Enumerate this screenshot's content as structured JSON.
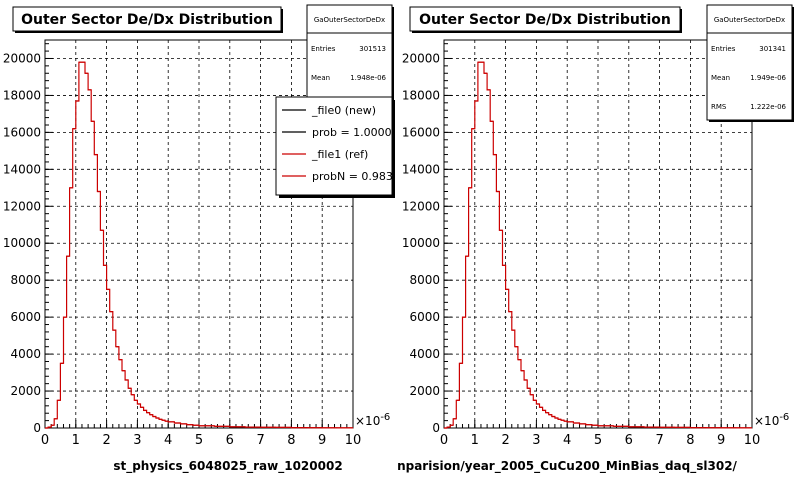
{
  "chart_data": [
    {
      "type": "line",
      "title": "Outer Sector De/Dx Distribution",
      "xlabel": "st_physics_6048025_raw_1020002",
      "ylabel": "",
      "x_exponent": "×10",
      "x_exponent_power": "-6",
      "xlim": [
        0,
        10
      ],
      "ylim": [
        0,
        21000
      ],
      "x_ticks": [
        "0",
        "1",
        "2",
        "3",
        "4",
        "5",
        "6",
        "7",
        "8",
        "9",
        "10"
      ],
      "y_ticks": [
        "0",
        "2000",
        "4000",
        "6000",
        "8000",
        "10000",
        "12000",
        "14000",
        "16000",
        "18000",
        "20000"
      ],
      "grid": true,
      "stats": {
        "name": "GaOuterSectorDeDx",
        "rows": [
          {
            "label": "Entries",
            "value": "301513"
          },
          {
            "label": "Mean",
            "value": "1.948e-06"
          }
        ]
      },
      "legend": {
        "position": "top-right",
        "entries": [
          {
            "label": "_file0 (new)",
            "color": "#000000"
          },
          {
            "label": "prob = 1.000000",
            "color": "#000000"
          },
          {
            "label": "_file1 (ref)",
            "color": "#cc0000"
          },
          {
            "label": "probN = 0.98363",
            "color": "#cc0000"
          }
        ]
      },
      "series": [
        {
          "color": "#cc0000",
          "x": [
            0,
            0.1,
            0.2,
            0.3,
            0.4,
            0.5,
            0.6,
            0.7,
            0.8,
            0.9,
            1.0,
            1.1,
            1.2,
            1.3,
            1.4,
            1.5,
            1.6,
            1.7,
            1.8,
            1.9,
            2.0,
            2.1,
            2.2,
            2.3,
            2.4,
            2.5,
            2.6,
            2.7,
            2.8,
            2.9,
            3.0,
            3.1,
            3.2,
            3.3,
            3.4,
            3.5,
            3.6,
            3.7,
            3.8,
            3.9,
            4.0,
            4.2,
            4.4,
            4.6,
            4.8,
            5.0,
            5.5,
            6.0,
            6.5,
            7.0,
            7.5,
            8.0,
            8.5,
            9.0,
            9.5
          ],
          "y": [
            0,
            50,
            150,
            500,
            1500,
            3500,
            6000,
            9300,
            13000,
            16200,
            17700,
            19800,
            19800,
            19200,
            18300,
            16600,
            14800,
            12800,
            10700,
            8800,
            7500,
            6300,
            5300,
            4400,
            3700,
            3100,
            2600,
            2150,
            1800,
            1500,
            1300,
            1120,
            950,
            830,
            720,
            620,
            540,
            470,
            420,
            370,
            330,
            270,
            220,
            180,
            150,
            120,
            90,
            65,
            50,
            40,
            30,
            22,
            17,
            12,
            8
          ]
        }
      ]
    },
    {
      "type": "line",
      "title": "Outer Sector De/Dx Distribution",
      "xlabel": "nparision/year_2005_CuCu200_MinBias_daq_sl302/",
      "ylabel": "",
      "x_exponent": "×10",
      "x_exponent_power": "-6",
      "xlim": [
        0,
        10
      ],
      "ylim": [
        0,
        21000
      ],
      "x_ticks": [
        "0",
        "1",
        "2",
        "3",
        "4",
        "5",
        "6",
        "7",
        "8",
        "9",
        "10"
      ],
      "y_ticks": [
        "0",
        "2000",
        "4000",
        "6000",
        "8000",
        "10000",
        "12000",
        "14000",
        "16000",
        "18000",
        "20000"
      ],
      "grid": true,
      "stats": {
        "name": "GaOuterSectorDeDx",
        "rows": [
          {
            "label": "Entries",
            "value": "301341"
          },
          {
            "label": "Mean",
            "value": "1.949e-06"
          },
          {
            "label": "RMS",
            "value": "1.222e-06"
          }
        ]
      },
      "series": [
        {
          "color": "#cc0000",
          "x": [
            0,
            0.1,
            0.2,
            0.3,
            0.4,
            0.5,
            0.6,
            0.7,
            0.8,
            0.9,
            1.0,
            1.1,
            1.2,
            1.3,
            1.4,
            1.5,
            1.6,
            1.7,
            1.8,
            1.9,
            2.0,
            2.1,
            2.2,
            2.3,
            2.4,
            2.5,
            2.6,
            2.7,
            2.8,
            2.9,
            3.0,
            3.1,
            3.2,
            3.3,
            3.4,
            3.5,
            3.6,
            3.7,
            3.8,
            3.9,
            4.0,
            4.2,
            4.4,
            4.6,
            4.8,
            5.0,
            5.5,
            6.0,
            6.5,
            7.0,
            7.5,
            8.0,
            8.5,
            9.0,
            9.5
          ],
          "y": [
            0,
            50,
            150,
            500,
            1500,
            3500,
            6000,
            9300,
            13000,
            16200,
            17700,
            19800,
            19800,
            19200,
            18300,
            16600,
            14800,
            12800,
            10700,
            8800,
            7500,
            6300,
            5300,
            4400,
            3700,
            3100,
            2600,
            2150,
            1800,
            1500,
            1300,
            1120,
            950,
            830,
            720,
            620,
            540,
            470,
            420,
            370,
            330,
            270,
            220,
            180,
            150,
            120,
            90,
            65,
            50,
            40,
            30,
            22,
            17,
            12,
            8
          ]
        }
      ]
    }
  ]
}
